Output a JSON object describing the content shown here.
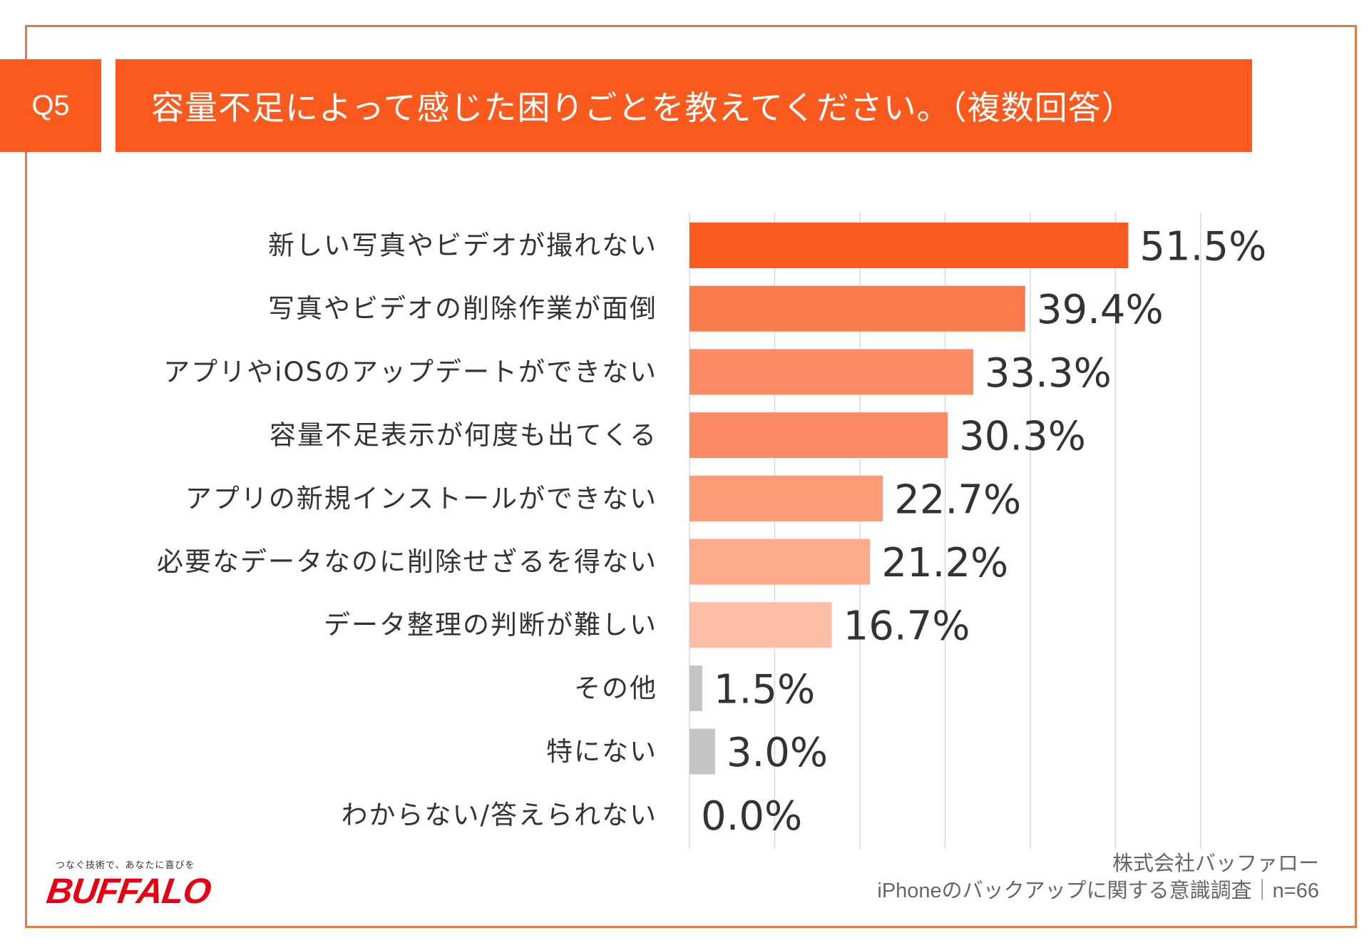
{
  "header": {
    "question_id": "Q5",
    "title": "容量不足によって感じた困りごとを教えてください。（複数回答）"
  },
  "chart_data": {
    "type": "bar",
    "orientation": "horizontal",
    "title": "容量不足によって感じた困りごとを教えてください。（複数回答）",
    "categories": [
      "新しい写真やビデオが撮れない",
      "写真やビデオの削除作業が面倒",
      "アプリやiOSのアップデートができない",
      "容量不足表示が何度も出てくる",
      "アプリの新規インストールができない",
      "必要なデータなのに削除せざるを得ない",
      "データ整理の判断が難しい",
      "その他",
      "特にない",
      "わからない/答えられない"
    ],
    "values": [
      51.5,
      39.4,
      33.3,
      30.3,
      22.7,
      21.2,
      16.7,
      1.5,
      3.0,
      0.0
    ],
    "value_labels": [
      "51.5%",
      "39.4%",
      "33.3%",
      "30.3%",
      "22.7%",
      "21.2%",
      "16.7%",
      "1.5%",
      "3.0%",
      "0.0%"
    ],
    "bar_colors": [
      "#fa5a1e",
      "#f97a4b",
      "#fa8b62",
      "#fa8b62",
      "#fb9c77",
      "#fbab8c",
      "#fcbea5",
      "#c4c4c4",
      "#c4c4c4",
      "#c4c4c4"
    ],
    "xlim": [
      0,
      60
    ],
    "grid": true,
    "xlabel": "",
    "ylabel": ""
  },
  "footer": {
    "logo_tagline": "つなぐ技術で、あなたに喜びを",
    "logo_text": "BUFFALO",
    "company": "株式会社バッファロー",
    "survey": "iPhoneのバックアップに関する意識調査｜n=66"
  },
  "colors": {
    "accent": "#fa5a1e",
    "frame": "#e07a48",
    "logo": "#e60012"
  }
}
